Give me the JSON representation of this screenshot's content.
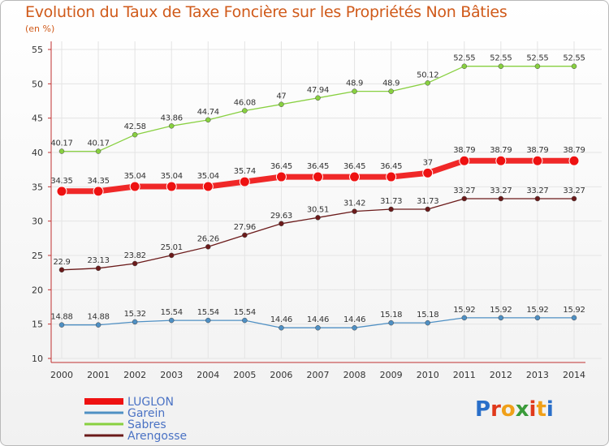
{
  "title": "Evolution du Taux de Taxe Foncière sur les Propriétés Non Bâties",
  "unit_label": "(en %)",
  "colors": {
    "title": "#d05a1a",
    "grid": "#e4e4e4",
    "axis": "#c03030",
    "tick_label": "#333333"
  },
  "logo": {
    "text": "Proxiti"
  },
  "chart_data": {
    "type": "line",
    "x": [
      "2000",
      "2001",
      "2002",
      "2003",
      "2004",
      "2005",
      "2006",
      "2007",
      "2008",
      "2009",
      "2010",
      "2011",
      "2012",
      "2013",
      "2014"
    ],
    "ylim": [
      10,
      55
    ],
    "yticks": [
      "10",
      "15",
      "20",
      "25",
      "30",
      "35",
      "40",
      "45",
      "50",
      "55"
    ],
    "grid": true,
    "legend_position": "bottom-left",
    "series": [
      {
        "name": "LUGLON",
        "color": "#ee1111",
        "highlight": true,
        "values": [
          34.35,
          34.35,
          35.04,
          35.04,
          35.04,
          35.74,
          36.45,
          36.45,
          36.45,
          36.45,
          37,
          38.79,
          38.79,
          38.79,
          38.79
        ],
        "labels": [
          "34.35",
          "34.35",
          "35.04",
          "35.04",
          "35.04",
          "35.74",
          "36.45",
          "36.45",
          "36.45",
          "36.45",
          "37",
          "38.79",
          "38.79",
          "38.79",
          "38.79"
        ]
      },
      {
        "name": "Garein",
        "color": "#4f90c4",
        "highlight": false,
        "values": [
          14.88,
          14.88,
          15.32,
          15.54,
          15.54,
          15.54,
          14.46,
          14.46,
          14.46,
          15.18,
          15.18,
          15.92,
          15.92,
          15.92,
          15.92
        ],
        "labels": [
          "14.88",
          "14.88",
          "15.32",
          "15.54",
          "15.54",
          "15.54",
          "14.46",
          "14.46",
          "14.46",
          "15.18",
          "15.18",
          "15.92",
          "15.92",
          "15.92",
          "15.92"
        ]
      },
      {
        "name": "Sabres",
        "color": "#88d040",
        "highlight": false,
        "values": [
          40.17,
          40.17,
          42.58,
          43.86,
          44.74,
          46.08,
          47,
          47.94,
          48.9,
          48.9,
          50.12,
          52.55,
          52.55,
          52.55,
          52.55
        ],
        "labels": [
          "40.17",
          "40.17",
          "42.58",
          "43.86",
          "44.74",
          "46.08",
          "47",
          "47.94",
          "48.9",
          "48.9",
          "50.12",
          "52.55",
          "52.55",
          "52.55",
          "52.55"
        ]
      },
      {
        "name": "Arengosse",
        "color": "#6b1a1a",
        "highlight": false,
        "values": [
          22.9,
          23.13,
          23.82,
          25.01,
          26.26,
          27.96,
          29.63,
          30.51,
          31.42,
          31.73,
          31.73,
          33.27,
          33.27,
          33.27,
          33.27
        ],
        "labels": [
          "22.9",
          "23.13",
          "23.82",
          "25.01",
          "26.26",
          "27.96",
          "29.63",
          "30.51",
          "31.42",
          "31.73",
          "31.73",
          "33.27",
          "33.27",
          "33.27",
          "33.27"
        ]
      }
    ]
  }
}
